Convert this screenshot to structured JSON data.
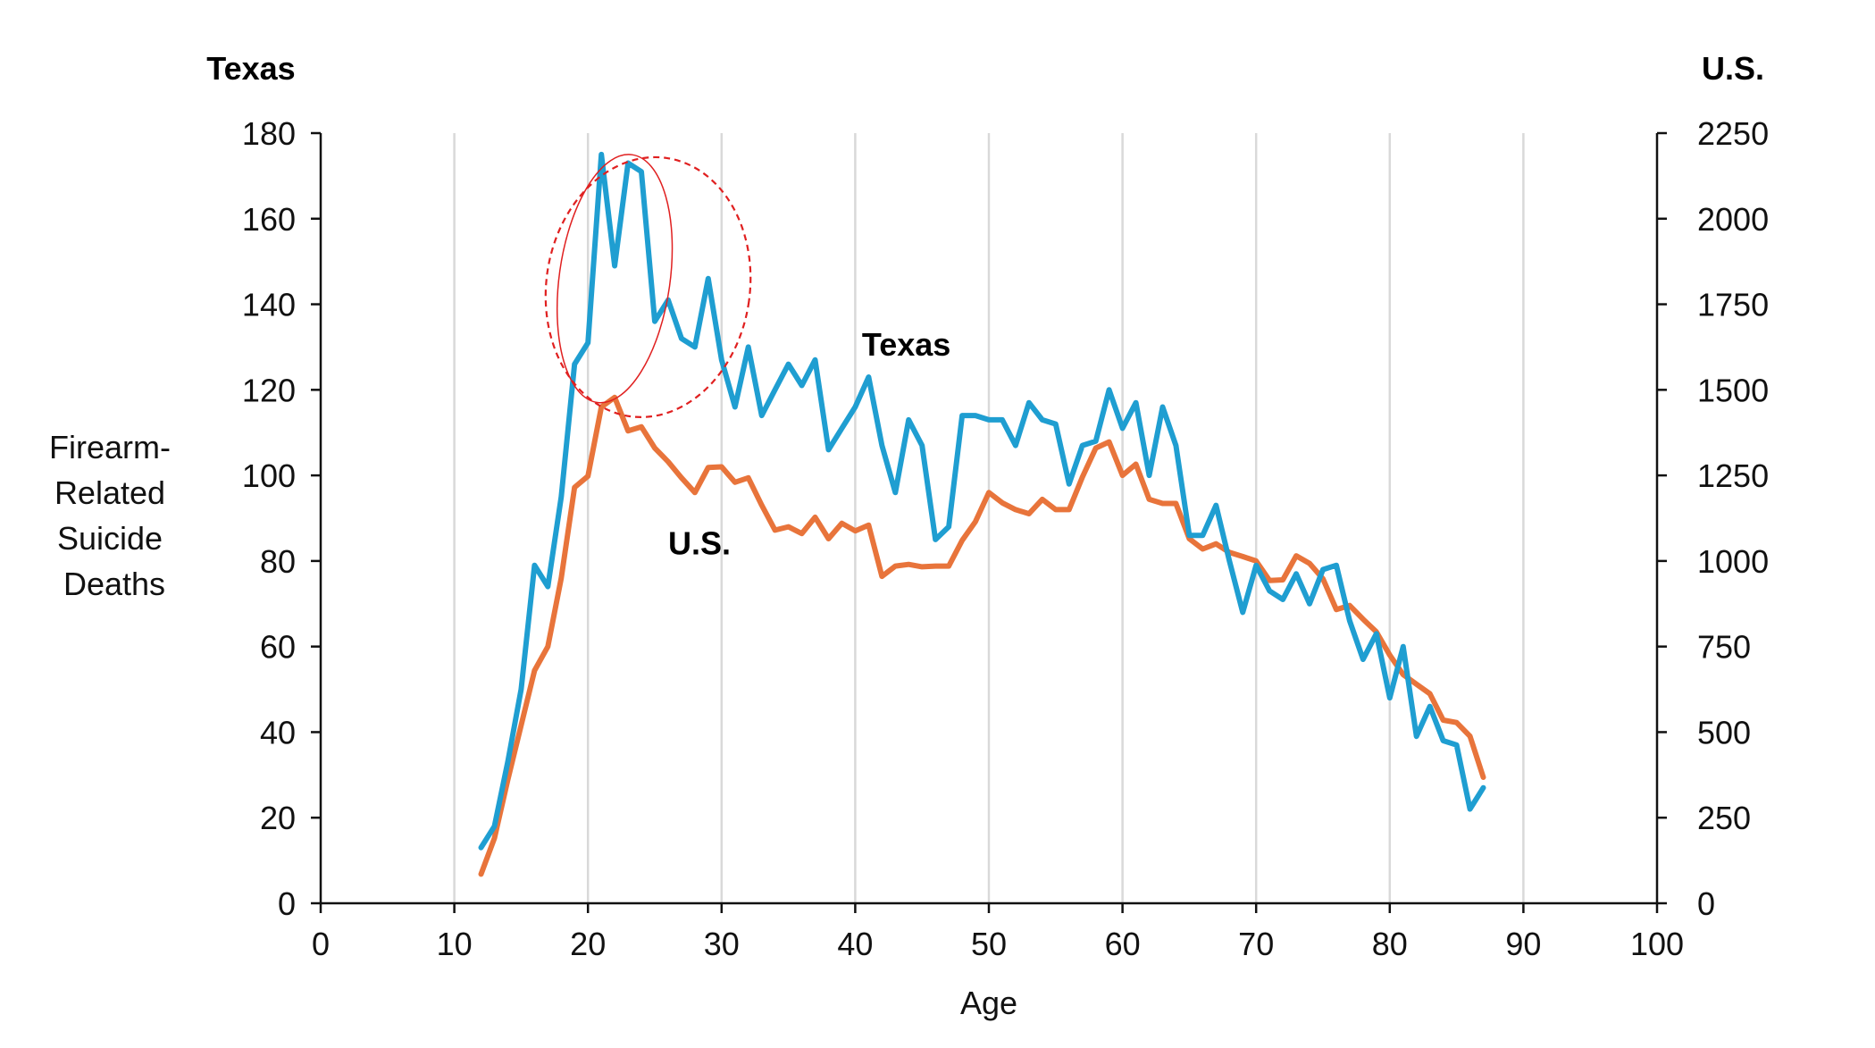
{
  "chart_data": {
    "type": "line",
    "xlabel": "Age",
    "ylabel_left_lines": [
      "Firearm-",
      "Related",
      "Suicide",
      "Deaths"
    ],
    "left_axis_header": "Texas",
    "right_axis_header": "U.S.",
    "xlim": [
      0,
      100
    ],
    "ylim_left": [
      0,
      180
    ],
    "ylim_right": [
      0,
      2250
    ],
    "x_ticks": [
      0,
      10,
      20,
      30,
      40,
      50,
      60,
      70,
      80,
      90,
      100
    ],
    "y_ticks_left": [
      0,
      20,
      40,
      60,
      80,
      100,
      120,
      140,
      160,
      180
    ],
    "y_ticks_right": [
      0,
      250,
      500,
      750,
      1000,
      1250,
      1500,
      1750,
      2000,
      2250
    ],
    "grid": "vertical",
    "series": [
      {
        "name": "Texas",
        "axis": "left",
        "color": "#1F9ED1",
        "x": [
          12,
          13,
          14,
          15,
          16,
          17,
          18,
          19,
          20,
          21,
          22,
          23,
          24,
          25,
          26,
          27,
          28,
          29,
          30,
          31,
          32,
          33,
          34,
          35,
          36,
          37,
          38,
          39,
          40,
          41,
          42,
          43,
          44,
          45,
          46,
          47,
          48,
          49,
          50,
          51,
          52,
          53,
          54,
          55,
          56,
          57,
          58,
          59,
          60,
          61,
          62,
          63,
          64,
          65,
          66,
          67,
          68,
          69,
          70,
          71,
          72,
          73,
          74,
          75,
          76,
          77,
          78,
          79,
          80,
          81,
          82,
          83,
          84,
          85,
          86,
          87
        ],
        "values": [
          13,
          18,
          33,
          50,
          79,
          74,
          95,
          126,
          131,
          175,
          149,
          173,
          171,
          136,
          141,
          132,
          130,
          146,
          127,
          116,
          130,
          114,
          120,
          126,
          121,
          127,
          106,
          111,
          116,
          123,
          107,
          96,
          113,
          107,
          85,
          88,
          114,
          114,
          113,
          113,
          107,
          117,
          113,
          112,
          98,
          107,
          108,
          120,
          111,
          117,
          100,
          116,
          107,
          86,
          86,
          93,
          80,
          68,
          79,
          73,
          71,
          77,
          70,
          78,
          79,
          66,
          57,
          63,
          48,
          60,
          39,
          46,
          38,
          37,
          22,
          27
        ]
      },
      {
        "name": "U.S.",
        "axis": "right",
        "color": "#E8743B",
        "x": [
          12,
          13,
          14,
          15,
          16,
          17,
          18,
          19,
          20,
          21,
          22,
          23,
          24,
          25,
          26,
          27,
          28,
          29,
          30,
          31,
          32,
          33,
          34,
          35,
          36,
          37,
          38,
          39,
          40,
          41,
          42,
          43,
          44,
          45,
          46,
          47,
          48,
          49,
          50,
          51,
          52,
          53,
          54,
          55,
          56,
          57,
          58,
          59,
          60,
          61,
          62,
          63,
          64,
          65,
          66,
          67,
          68,
          69,
          70,
          71,
          72,
          73,
          74,
          75,
          76,
          77,
          78,
          79,
          80,
          81,
          82,
          83,
          84,
          85,
          86,
          87
        ],
        "values": [
          85,
          190,
          360,
          520,
          680,
          750,
          950,
          1215,
          1248,
          1450,
          1478,
          1380,
          1392,
          1330,
          1290,
          1243,
          1200,
          1273,
          1275,
          1230,
          1243,
          1163,
          1090,
          1100,
          1080,
          1128,
          1065,
          1110,
          1088,
          1105,
          955,
          985,
          990,
          983,
          985,
          985,
          1060,
          1115,
          1200,
          1170,
          1150,
          1138,
          1180,
          1150,
          1150,
          1245,
          1330,
          1348,
          1250,
          1283,
          1180,
          1168,
          1168,
          1065,
          1035,
          1050,
          1025,
          1013,
          1000,
          943,
          945,
          1015,
          993,
          948,
          858,
          870,
          830,
          793,
          725,
          668,
          640,
          612,
          535,
          528,
          488,
          368
        ]
      }
    ],
    "annotations": [
      {
        "text": "Texas",
        "x": 40.5,
        "y_left": 128
      },
      {
        "text": "U.S.",
        "x": 26,
        "y_left": 81.5
      }
    ]
  }
}
